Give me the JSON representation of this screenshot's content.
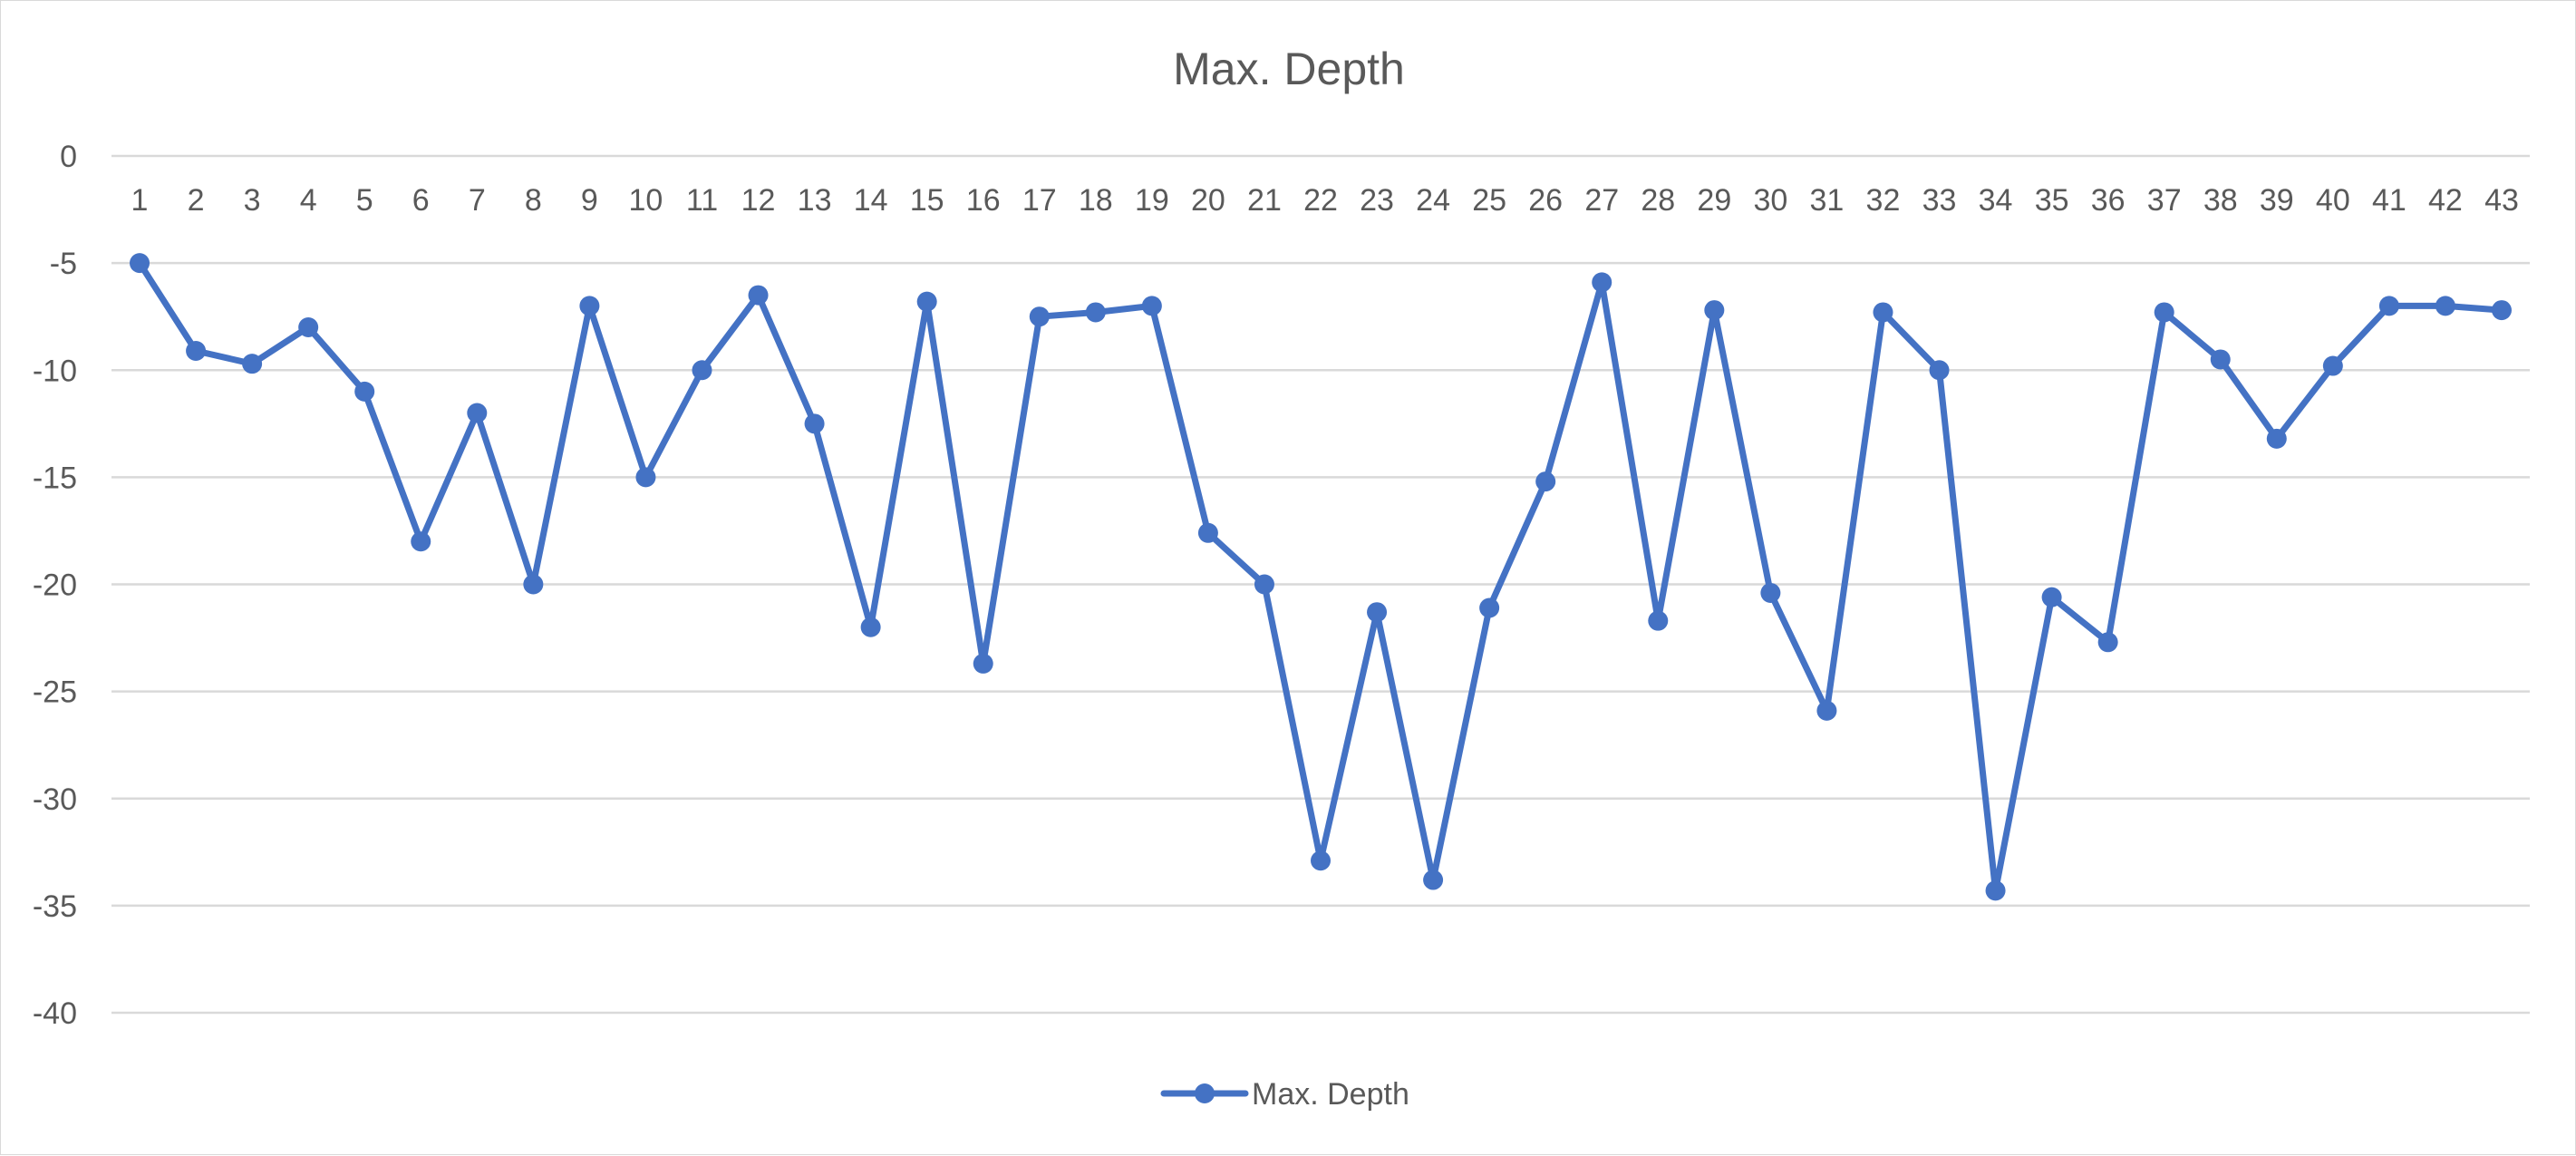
{
  "chart_data": {
    "type": "line",
    "title": "Max. Depth",
    "xlabel": "",
    "ylabel": "",
    "categories": [
      "1",
      "2",
      "3",
      "4",
      "5",
      "6",
      "7",
      "8",
      "9",
      "10",
      "11",
      "12",
      "13",
      "14",
      "15",
      "16",
      "17",
      "18",
      "19",
      "20",
      "21",
      "22",
      "23",
      "24",
      "25",
      "26",
      "27",
      "28",
      "29",
      "30",
      "31",
      "32",
      "33",
      "34",
      "35",
      "36",
      "37",
      "38",
      "39",
      "40",
      "41",
      "42",
      "43"
    ],
    "series": [
      {
        "name": "Max. Depth",
        "color": "#4472C4",
        "values": [
          -5,
          -9.1,
          -9.7,
          -8,
          -11,
          -18,
          -12,
          -20,
          -7,
          -15,
          -10,
          -6.5,
          -12.5,
          -22,
          -6.8,
          -23.7,
          -7.5,
          -7.3,
          -7,
          -17.6,
          -20,
          -32.9,
          -21.3,
          -33.8,
          -21.1,
          -15.2,
          -5.9,
          -21.7,
          -7.2,
          -20.4,
          -25.9,
          -7.3,
          -10,
          -34.3,
          -20.6,
          -22.7,
          -7.3,
          -9.5,
          -13.2,
          -9.8,
          -7,
          -7,
          -7.2
        ]
      }
    ],
    "ylim": [
      -40,
      0
    ],
    "yticks": [
      0,
      -5,
      -10,
      -15,
      -20,
      -25,
      -30,
      -35,
      -40
    ],
    "grid": true,
    "legend_position": "bottom"
  }
}
